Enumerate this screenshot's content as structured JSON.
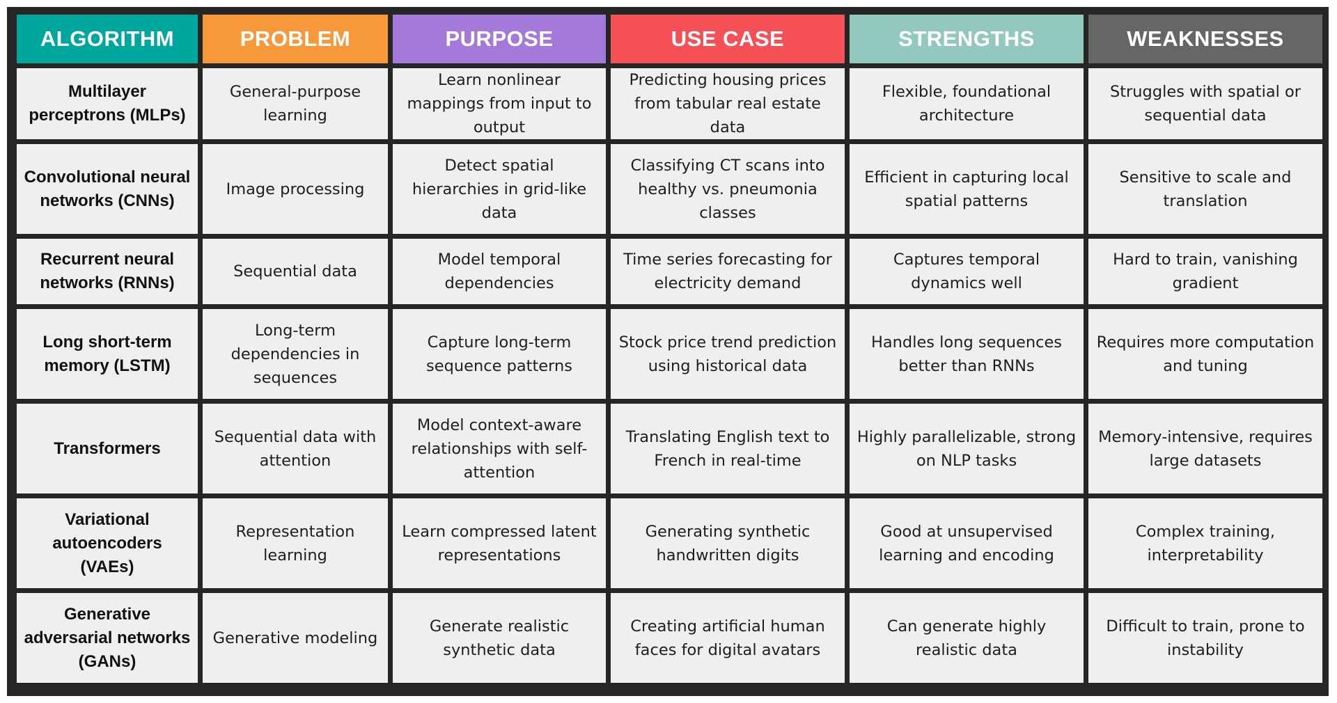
{
  "headers": [
    {
      "label": "ALGORITHM",
      "color": "#00a79d"
    },
    {
      "label": "PROBLEM",
      "color": "#f7993a"
    },
    {
      "label": "PURPOSE",
      "color": "#a479d9"
    },
    {
      "label": "USE CASE",
      "color": "#f45056"
    },
    {
      "label": "STRENGTHS",
      "color": "#93c8bf"
    },
    {
      "label": "WEAKNESSES",
      "color": "#666666"
    }
  ],
  "rows": [
    {
      "algorithm": "Multilayer perceptrons (MLPs)",
      "problem": "General-purpose learning",
      "purpose": "Learn nonlinear mappings from input to output",
      "use_case": "Predicting housing prices from tabular real estate data",
      "strengths": "Flexible, foundational architecture",
      "weaknesses": "Struggles with spatial or sequential data"
    },
    {
      "algorithm": "Convolutional neural networks (CNNs)",
      "problem": "Image processing",
      "purpose": "Detect spatial hierarchies in grid-like data",
      "use_case": "Classifying CT scans into healthy vs. pneumonia classes",
      "strengths": "Efficient in capturing local spatial patterns",
      "weaknesses": "Sensitive to scale and translation"
    },
    {
      "algorithm": "Recurrent neural networks (RNNs)",
      "problem": "Sequential data",
      "purpose": "Model temporal dependencies",
      "use_case": "Time series forecasting for electricity demand",
      "strengths": "Captures temporal dynamics well",
      "weaknesses": "Hard to train, vanishing gradient"
    },
    {
      "algorithm": "Long short-term memory (LSTM)",
      "problem": "Long-term dependencies in sequences",
      "purpose": "Capture long-term sequence patterns",
      "use_case": "Stock price trend prediction using historical data",
      "strengths": "Handles long sequences better than RNNs",
      "weaknesses": "Requires more computation and tuning"
    },
    {
      "algorithm": "Transformers",
      "problem": "Sequential data with attention",
      "purpose": "Model context-aware relationships with self-attention",
      "use_case": "Translating English text to French in real-time",
      "strengths": "Highly parallelizable, strong on NLP tasks",
      "weaknesses": "Memory-intensive, requires large datasets"
    },
    {
      "algorithm": "Variational autoencoders (VAEs)",
      "problem": "Representation learning",
      "purpose": "Learn compressed latent representations",
      "use_case": "Generating synthetic handwritten digits",
      "strengths": "Good at unsupervised learning and encoding",
      "weaknesses": "Complex training, interpretability"
    },
    {
      "algorithm": "Generative adversarial networks (GANs)",
      "problem": "Generative modeling",
      "purpose": "Generate realistic synthetic data",
      "use_case": "Creating artificial human faces for digital avatars",
      "strengths": "Can generate highly realistic data",
      "weaknesses": "Difficult to train, prone to instability"
    }
  ]
}
